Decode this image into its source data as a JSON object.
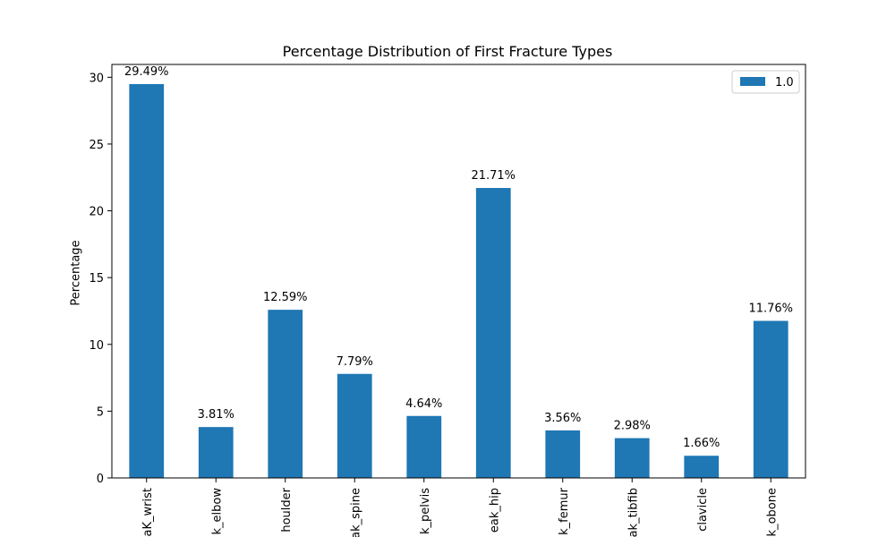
{
  "chart_data": {
    "type": "bar",
    "title": "Percentage Distribution of First Fracture Types",
    "xlabel": "",
    "ylabel": "Percentage",
    "categories": [
      "aK_wrist",
      "k_elbow",
      "houlder",
      "ak_spine",
      "k_pelvis",
      "eak_hip",
      "k_femur",
      "ak_tibfib",
      "clavicle",
      "k_obone"
    ],
    "series": [
      {
        "name": "1.0",
        "color": "#1f77b4",
        "values": [
          29.49,
          3.81,
          12.59,
          7.79,
          4.64,
          21.71,
          3.56,
          2.98,
          1.66,
          11.76
        ],
        "value_labels": [
          "29.49%",
          "3.81%",
          "12.59%",
          "7.79%",
          "4.64%",
          "21.71%",
          "3.56%",
          "2.98%",
          "1.66%",
          "11.76%"
        ]
      }
    ],
    "ylim": [
      0,
      30.96
    ],
    "yticks": [
      0,
      5,
      10,
      15,
      20,
      25,
      30
    ],
    "grid": false,
    "legend_position": "top-right"
  }
}
